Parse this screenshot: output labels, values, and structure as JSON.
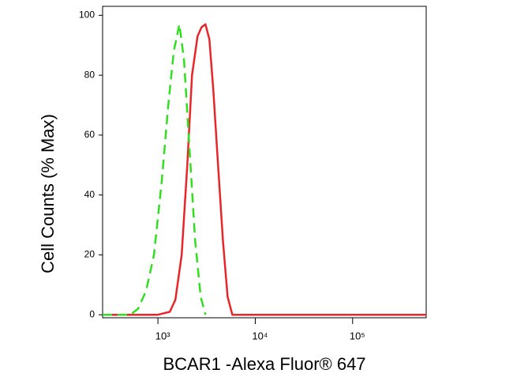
{
  "chart_data": {
    "type": "line",
    "x_label": "BCAR1 -Alexa Fluor® 647",
    "y_label": "Cell Counts (% Max)",
    "x_scale": "log",
    "xlim": [
      270,
      570000
    ],
    "xticks": [
      {
        "value": 1000,
        "label": "10³"
      },
      {
        "value": 10000,
        "label": "10⁴"
      },
      {
        "value": 100000,
        "label": "10⁵"
      }
    ],
    "ylim": [
      -1,
      103
    ],
    "yticks": [
      0,
      20,
      40,
      60,
      80,
      100
    ],
    "series": [
      {
        "color": "#e8262a",
        "dash": false,
        "x": [
          297,
          1000,
          1324,
          1510,
          1754,
          2000,
          2239,
          2551,
          2800,
          3076,
          3377,
          3707,
          4150,
          4645,
          5193,
          5808,
          570000
        ],
        "values": [
          0,
          0,
          1,
          5,
          20,
          50,
          80,
          93,
          96,
          97,
          92,
          75,
          50,
          25,
          6,
          0,
          0
        ]
      },
      {
        "color": "#33dd22",
        "dash": true,
        "x": [
          270,
          519,
          626,
          755,
          911,
          1098,
          1276,
          1455,
          1660,
          1855,
          2113,
          2410,
          2747,
          3076
        ],
        "values": [
          0,
          0,
          2,
          8,
          20,
          45,
          70,
          88,
          97,
          85,
          55,
          25,
          6,
          0
        ]
      }
    ]
  }
}
